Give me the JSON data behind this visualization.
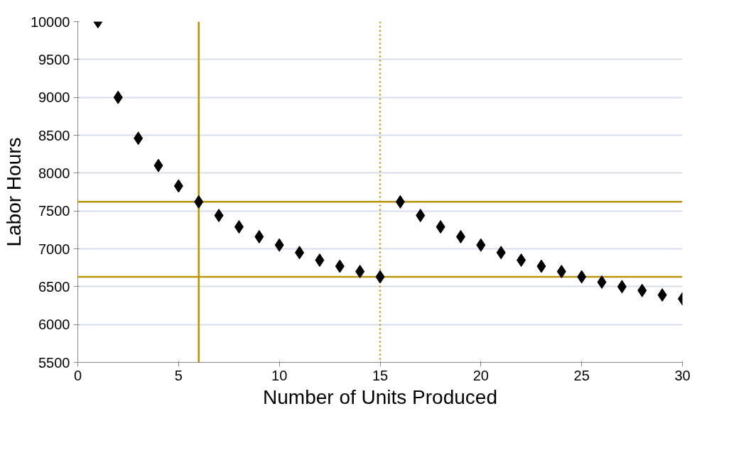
{
  "chart_data": {
    "type": "scatter",
    "xlabel": "Number of Units Produced",
    "ylabel": "Labor Hours",
    "x": [
      1,
      2,
      3,
      4,
      5,
      6,
      7,
      8,
      9,
      10,
      11,
      12,
      13,
      14,
      15,
      16,
      17,
      18,
      19,
      20,
      21,
      22,
      23,
      24,
      25,
      26,
      27,
      28,
      29,
      30
    ],
    "series": [
      {
        "color": "#000000",
        "values": [
          10000,
          9000,
          8460,
          8100,
          7830,
          7620,
          7440,
          7290,
          7160,
          7050,
          6950,
          6850,
          6770,
          6700,
          6630,
          7620,
          7440,
          7290,
          7160,
          7050,
          6950,
          6850,
          6770,
          6700,
          6630,
          6560,
          6500,
          6450,
          6390,
          6340
        ]
      }
    ],
    "xlim": [
      0,
      30
    ],
    "xticks": [
      0,
      5,
      10,
      15,
      20,
      25,
      30
    ],
    "ylim": [
      5500,
      10000
    ],
    "yticks": [
      5500,
      6000,
      6500,
      7000,
      7500,
      8000,
      8500,
      9000,
      9500,
      10000
    ],
    "grid": "y",
    "marker": "diamond",
    "ref_lines": [
      {
        "axis": "y",
        "value": 7620,
        "color": "#b8960c",
        "line_style": "solid"
      },
      {
        "axis": "y",
        "value": 6630,
        "color": "#b8960c",
        "line_style": "solid"
      },
      {
        "axis": "x",
        "value": 6,
        "color": "#b8960c",
        "line_style": "solid"
      },
      {
        "axis": "x",
        "value": 15,
        "color": "#b8960c",
        "line_style": "dotted"
      }
    ]
  }
}
